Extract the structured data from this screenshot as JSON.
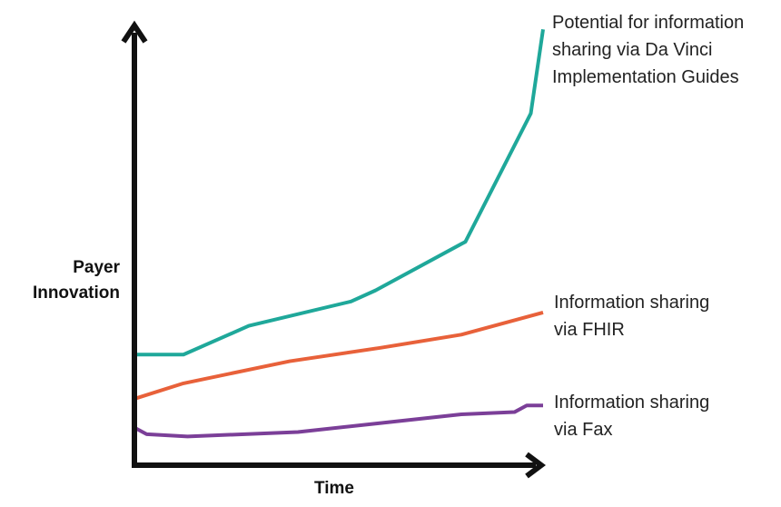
{
  "chart_data": {
    "type": "line",
    "x_label": "Time",
    "y_label": "Payer Innovation",
    "xlim": [
      0,
      100
    ],
    "ylim": [
      0,
      100
    ],
    "series": [
      {
        "name": "Potential for information sharing via Da Vinci Implementation Guides",
        "color": "#1fa89a",
        "x": [
          0,
          12,
          28,
          53,
          59,
          81,
          97,
          100
        ],
        "values": [
          25,
          25,
          31.5,
          37,
          39.5,
          50.5,
          79.5,
          98.5
        ]
      },
      {
        "name": "Information sharing via FHIR",
        "color": "#e8613a",
        "x": [
          0,
          12,
          38,
          60,
          80,
          100
        ],
        "values": [
          15,
          18.5,
          23.5,
          26.5,
          29.5,
          34.5
        ]
      },
      {
        "name": "Information sharing via Fax",
        "color": "#7b3f98",
        "x": [
          0,
          3,
          13,
          40,
          60,
          80,
          93,
          96,
          100
        ],
        "values": [
          8.5,
          7,
          6.5,
          7.5,
          9.5,
          11.5,
          12,
          13.5,
          13.5
        ]
      }
    ]
  }
}
